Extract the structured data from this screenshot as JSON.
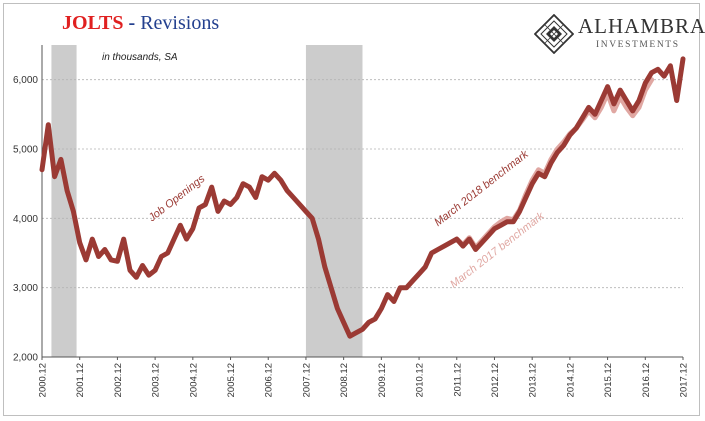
{
  "header": {
    "title_main": "JOLTS",
    "title_sep": " - ",
    "title_rest": "Revisions"
  },
  "logo": {
    "name": "ALHAMBRA",
    "sub": "INVESTMENTS",
    "icon": "diamond-lattice-logo"
  },
  "colors": {
    "bench2018": "#9b3a34",
    "bench2017": "#e0a7a2",
    "recession": "#cccccc",
    "grid": "#b3b3b3"
  },
  "chart_data": {
    "type": "line",
    "title": "JOLTS - Revisions",
    "xlabel": "",
    "ylabel": "",
    "note": "in thousands, SA",
    "ylim": [
      2000,
      6500
    ],
    "yticks": [
      2000,
      3000,
      4000,
      5000,
      6000
    ],
    "ytick_labels": [
      "2,000",
      "3,000",
      "4,000",
      "5,000",
      "6,000"
    ],
    "xlim": [
      "2000.12",
      "2017.12"
    ],
    "xticks": [
      "2000.12",
      "2001.12",
      "2002.12",
      "2003.12",
      "2004.12",
      "2005.12",
      "2006.12",
      "2007.12",
      "2008.12",
      "2009.12",
      "2010.12",
      "2011.12",
      "2012.12",
      "2013.12",
      "2014.12",
      "2015.12",
      "2016.12",
      "2017.12"
    ],
    "grid": true,
    "recessions": [
      [
        "2001.03",
        "2001.11"
      ],
      [
        "2007.12",
        "2009.06"
      ]
    ],
    "annotations": [
      {
        "text": "Job Openings",
        "series": "March 2018 benchmark"
      },
      {
        "text": "March 2018 benchmark"
      },
      {
        "text": "March 2017 benchmark"
      }
    ],
    "series": [
      {
        "name": "March 2018 benchmark",
        "x": [
          "2000.12",
          "2001.02",
          "2001.04",
          "2001.06",
          "2001.08",
          "2001.10",
          "2001.12",
          "2002.02",
          "2002.04",
          "2002.06",
          "2002.08",
          "2002.10",
          "2002.12",
          "2003.02",
          "2003.04",
          "2003.06",
          "2003.08",
          "2003.10",
          "2003.12",
          "2004.02",
          "2004.04",
          "2004.06",
          "2004.08",
          "2004.10",
          "2004.12",
          "2005.02",
          "2005.04",
          "2005.06",
          "2005.08",
          "2005.10",
          "2005.12",
          "2006.02",
          "2006.04",
          "2006.06",
          "2006.08",
          "2006.10",
          "2006.12",
          "2007.02",
          "2007.04",
          "2007.06",
          "2007.08",
          "2007.10",
          "2007.12",
          "2008.02",
          "2008.04",
          "2008.06",
          "2008.08",
          "2008.10",
          "2008.12",
          "2009.02",
          "2009.04",
          "2009.06",
          "2009.08",
          "2009.10",
          "2009.12",
          "2010.02",
          "2010.04",
          "2010.06",
          "2010.08",
          "2010.10",
          "2010.12",
          "2011.02",
          "2011.04",
          "2011.06",
          "2011.08",
          "2011.10",
          "2011.12",
          "2012.02",
          "2012.04",
          "2012.06",
          "2012.08",
          "2012.10",
          "2012.12",
          "2013.02",
          "2013.04",
          "2013.06",
          "2013.08",
          "2013.10",
          "2013.12",
          "2014.02",
          "2014.04",
          "2014.06",
          "2014.08",
          "2014.10",
          "2014.12",
          "2015.02",
          "2015.04",
          "2015.06",
          "2015.08",
          "2015.10",
          "2015.12",
          "2016.02",
          "2016.04",
          "2016.06",
          "2016.08",
          "2016.10",
          "2016.12",
          "2017.02",
          "2017.04",
          "2017.06",
          "2017.08",
          "2017.10",
          "2017.12"
        ],
        "y": [
          4700,
          5350,
          4600,
          4850,
          4400,
          4100,
          3650,
          3400,
          3700,
          3450,
          3550,
          3400,
          3380,
          3700,
          3250,
          3150,
          3320,
          3180,
          3250,
          3450,
          3500,
          3700,
          3900,
          3700,
          3850,
          4150,
          4200,
          4450,
          4100,
          4250,
          4200,
          4300,
          4500,
          4450,
          4300,
          4600,
          4550,
          4650,
          4550,
          4400,
          4300,
          4200,
          4100,
          4000,
          3700,
          3300,
          3000,
          2700,
          2500,
          2300,
          2350,
          2400,
          2500,
          2550,
          2700,
          2900,
          2800,
          3000,
          3000,
          3100,
          3200,
          3300,
          3500,
          3550,
          3600,
          3650,
          3700,
          3600,
          3700,
          3550,
          3650,
          3750,
          3850,
          3900,
          3950,
          3950,
          4100,
          4300,
          4500,
          4650,
          4600,
          4800,
          4950,
          5050,
          5200,
          5300,
          5450,
          5600,
          5500,
          5700,
          5900,
          5650,
          5850,
          5700,
          5550,
          5700,
          5950,
          6100,
          6150,
          6050,
          6200,
          5700,
          6300
        ]
      },
      {
        "name": "March 2017 benchmark",
        "x": [
          "2011.12",
          "2012.02",
          "2012.04",
          "2012.06",
          "2012.08",
          "2012.10",
          "2012.12",
          "2013.02",
          "2013.04",
          "2013.06",
          "2013.08",
          "2013.10",
          "2013.12",
          "2014.02",
          "2014.04",
          "2014.06",
          "2014.08",
          "2014.10",
          "2014.12",
          "2015.02",
          "2015.04",
          "2015.06",
          "2015.08",
          "2015.10",
          "2015.12",
          "2016.02",
          "2016.04",
          "2016.06",
          "2016.08",
          "2016.10",
          "2016.12",
          "2017.02"
        ],
        "y": [
          3700,
          3620,
          3720,
          3580,
          3680,
          3780,
          3880,
          3950,
          4000,
          3980,
          4120,
          4350,
          4550,
          4700,
          4650,
          4850,
          5000,
          5100,
          5220,
          5300,
          5420,
          5550,
          5450,
          5600,
          5800,
          5550,
          5750,
          5600,
          5480,
          5600,
          5850,
          6000
        ]
      }
    ]
  }
}
